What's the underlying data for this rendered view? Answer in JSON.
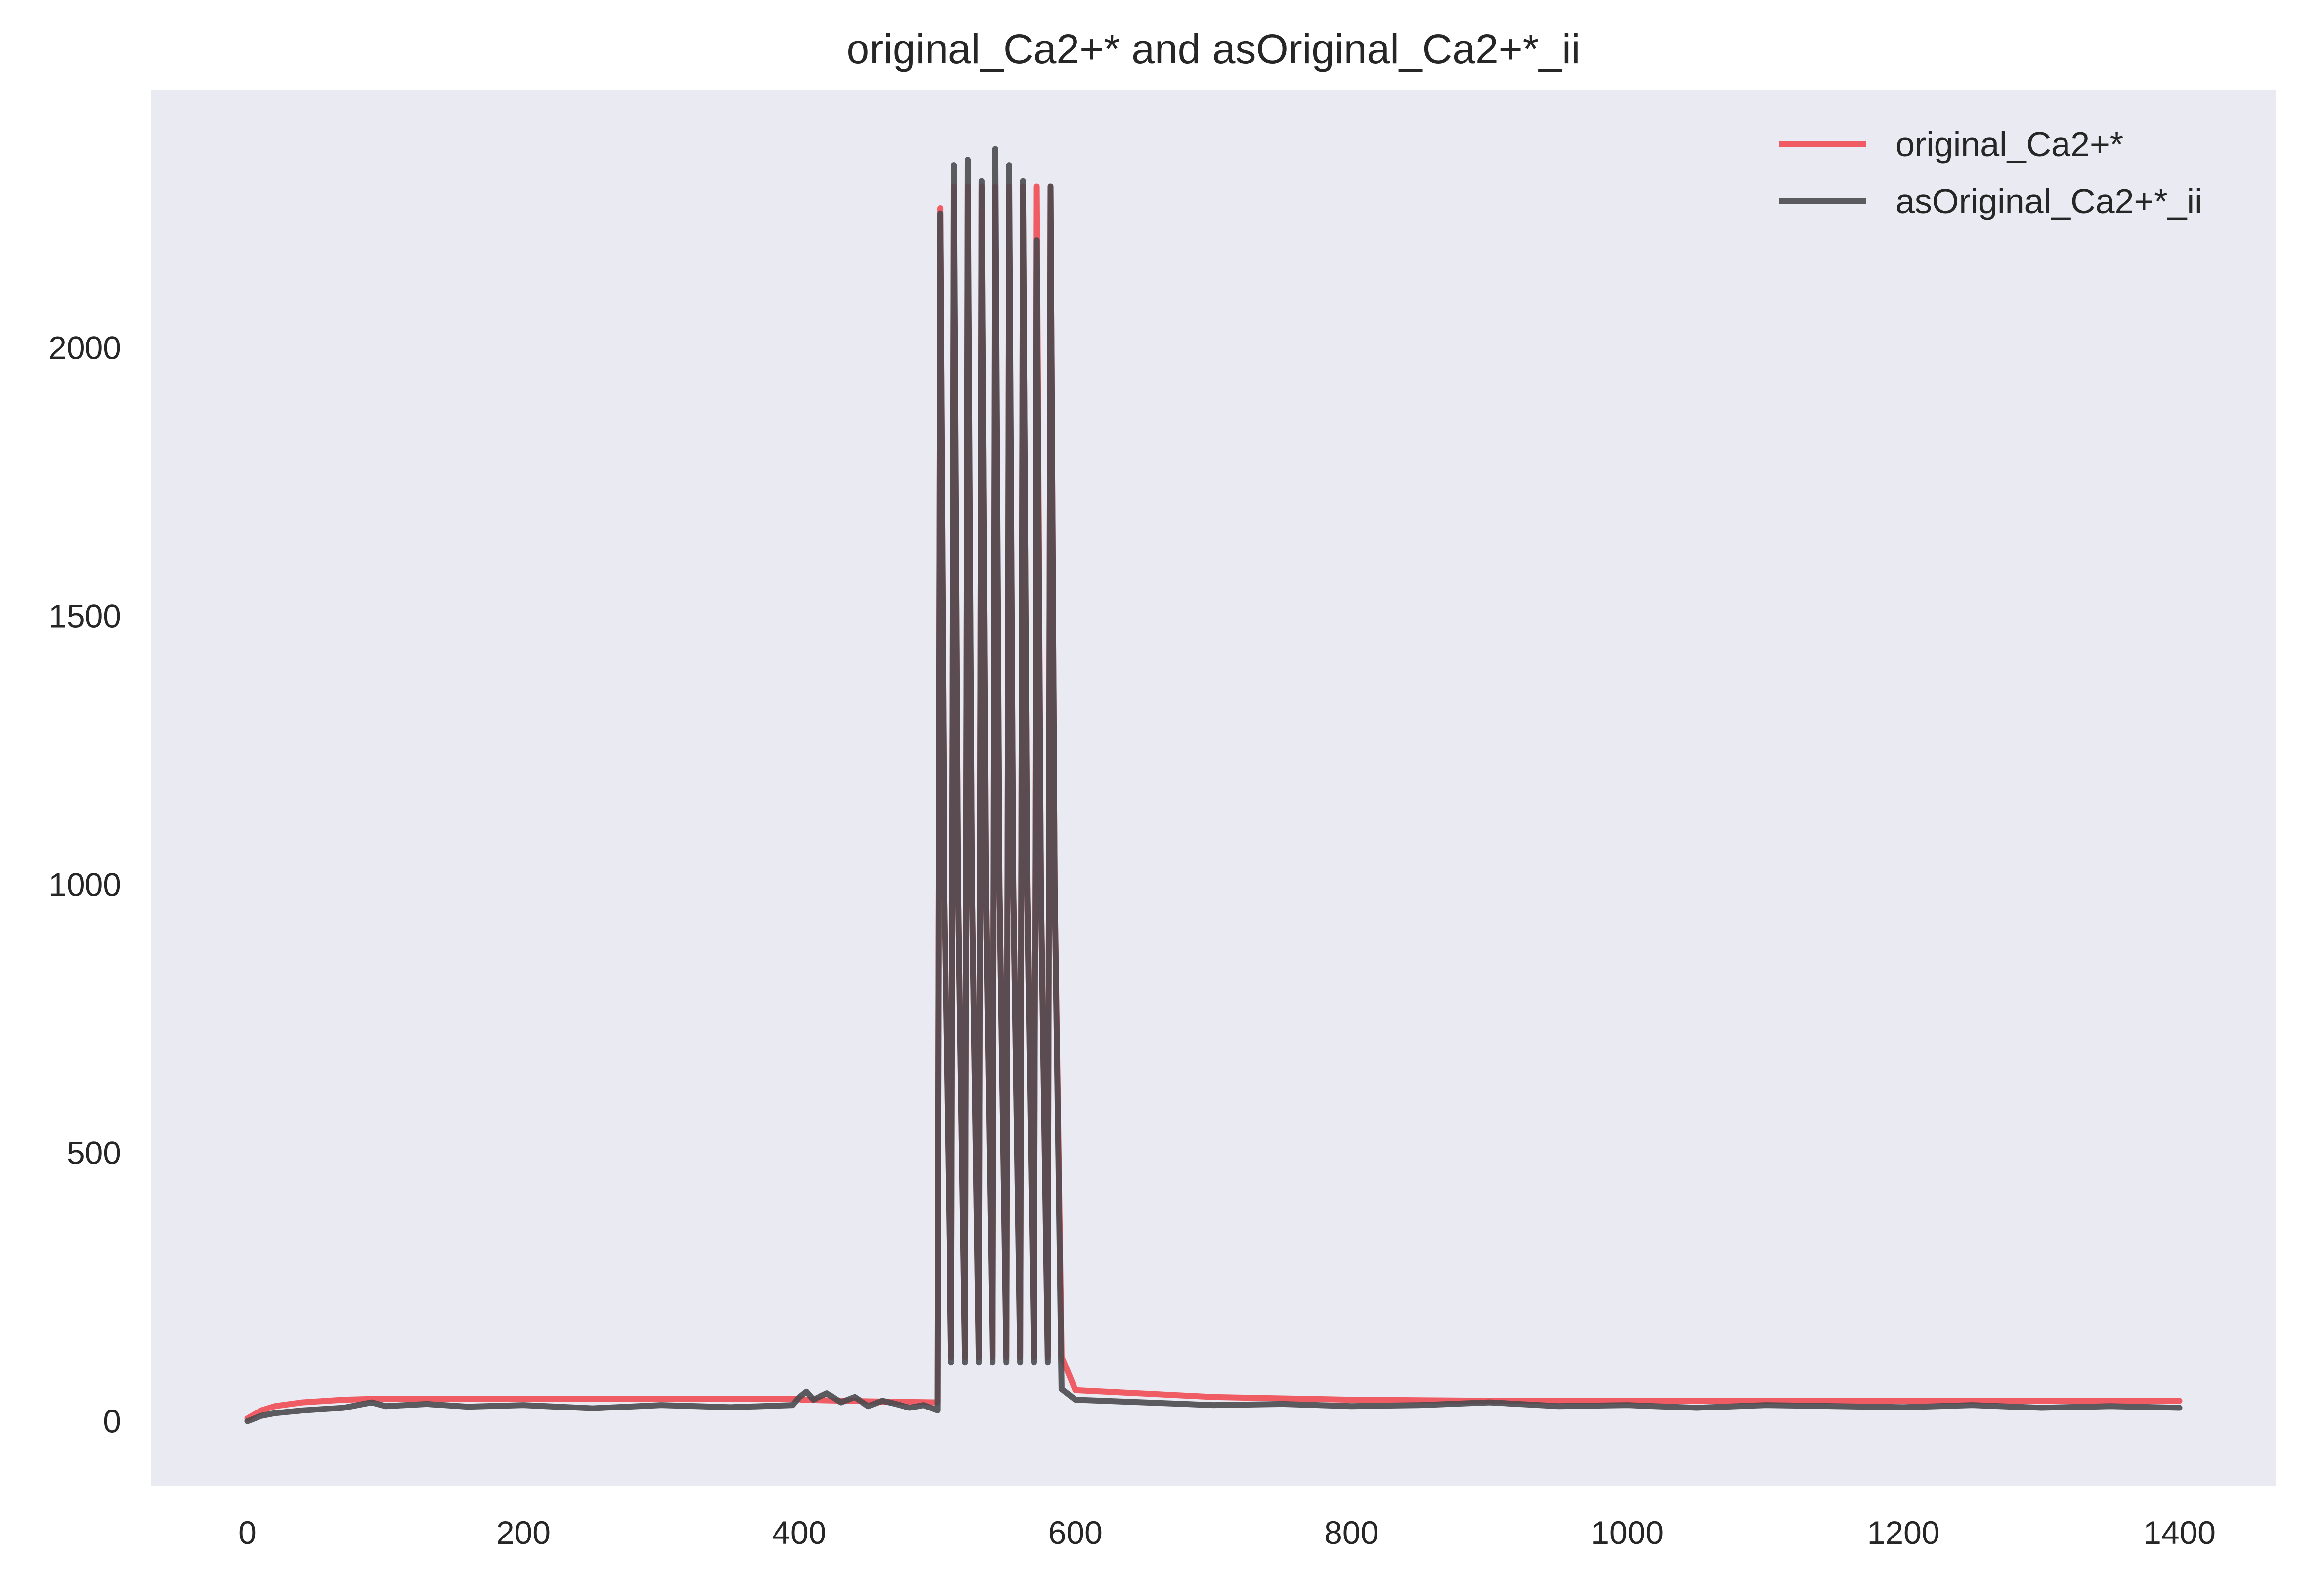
{
  "chart_data": {
    "type": "line",
    "title": "original_Ca2+* and asOriginal_Ca2+*_ii",
    "xlabel": "",
    "ylabel": "",
    "xlim": [
      -70,
      1470
    ],
    "ylim": [
      -120,
      2480
    ],
    "grid": false,
    "background": "#eaeaf2",
    "legend_position": "top-right",
    "x_ticks": [
      0,
      200,
      400,
      600,
      800,
      1000,
      1200,
      1400
    ],
    "y_ticks": [
      0,
      500,
      1000,
      1500,
      2000
    ],
    "x_tick_labels": [
      "0",
      "200",
      "400",
      "600",
      "800",
      "1000",
      "1200",
      "1400"
    ],
    "y_tick_labels": [
      "0",
      "500",
      "1000",
      "1500",
      "2000"
    ],
    "series": [
      {
        "name": "original_Ca2+*",
        "color": "#f0545c",
        "opacity": 0.95,
        "x": [
          0,
          10,
          20,
          40,
          70,
          100,
          200,
          300,
          400,
          401,
          450,
          500,
          502,
          505,
          510,
          512,
          515,
          520,
          522,
          525,
          530,
          532,
          535,
          540,
          542,
          545,
          550,
          552,
          555,
          560,
          562,
          565,
          570,
          572,
          575,
          580,
          582,
          585,
          590,
          600,
          700,
          800,
          900,
          1000,
          1100,
          1200,
          1300,
          1400
        ],
        "y": [
          5,
          20,
          28,
          35,
          40,
          42,
          42,
          42,
          42,
          40,
          37,
          35,
          2260,
          1000,
          120,
          2300,
          1000,
          120,
          2300,
          1000,
          120,
          2300,
          1000,
          120,
          2300,
          1000,
          120,
          2300,
          1000,
          120,
          2300,
          1000,
          120,
          2300,
          1000,
          120,
          2300,
          1000,
          120,
          58,
          45,
          40,
          38,
          38,
          38,
          38,
          38,
          38
        ]
      },
      {
        "name": "asOriginal_Ca2+*_ii",
        "color": "#4a4a4f",
        "opacity": 0.9,
        "x": [
          0,
          10,
          20,
          40,
          70,
          90,
          100,
          130,
          160,
          200,
          250,
          300,
          350,
          395,
          400,
          405,
          410,
          420,
          430,
          440,
          450,
          460,
          470,
          480,
          490,
          500,
          502,
          505,
          510,
          512,
          515,
          520,
          522,
          525,
          530,
          532,
          535,
          540,
          542,
          545,
          550,
          552,
          555,
          560,
          562,
          565,
          570,
          572,
          575,
          580,
          582,
          585,
          590,
          600,
          650,
          700,
          750,
          800,
          850,
          900,
          950,
          1000,
          1050,
          1100,
          1150,
          1200,
          1250,
          1300,
          1350,
          1400
        ],
        "y": [
          0,
          10,
          15,
          20,
          25,
          35,
          28,
          32,
          27,
          30,
          24,
          30,
          26,
          30,
          45,
          55,
          40,
          52,
          35,
          45,
          28,
          38,
          32,
          25,
          30,
          20,
          2250,
          1000,
          110,
          2340,
          1000,
          110,
          2350,
          1000,
          110,
          2310,
          1000,
          110,
          2370,
          1000,
          110,
          2340,
          1000,
          110,
          2310,
          1000,
          110,
          2200,
          1000,
          110,
          2300,
          1000,
          60,
          40,
          35,
          30,
          32,
          28,
          30,
          35,
          28,
          30,
          25,
          30,
          28,
          26,
          30,
          25,
          28,
          25
        ]
      }
    ]
  }
}
